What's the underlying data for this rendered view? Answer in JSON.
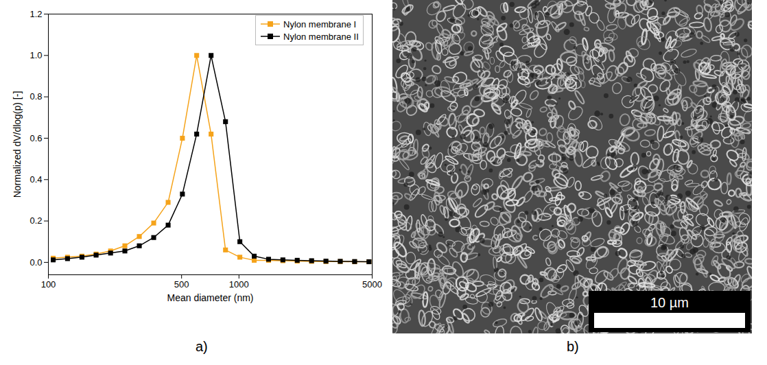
{
  "chart_data": {
    "type": "line",
    "x_label": "Mean diameter (nm)",
    "y_label": "Normalized dV/dlog(p) [-]",
    "x": [
      106,
      126,
      150,
      178,
      212,
      252,
      300,
      357,
      425,
      505,
      600,
      714,
      850,
      1011,
      1202,
      1430,
      1700,
      2022,
      2405,
      2860,
      3400,
      4045,
      4810
    ],
    "series": [
      {
        "name": "Nylon membrane I",
        "color": "#f5a31a",
        "marker": "square",
        "values": [
          0.02,
          0.025,
          0.03,
          0.04,
          0.055,
          0.08,
          0.125,
          0.19,
          0.29,
          0.6,
          1.0,
          0.62,
          0.06,
          0.025,
          0.01,
          0.01,
          0.008,
          0.006,
          0.005,
          0.004,
          0.004,
          0.003,
          0.003
        ]
      },
      {
        "name": "Nylon membrane II",
        "color": "#000000",
        "marker": "square",
        "values": [
          0.012,
          0.018,
          0.025,
          0.035,
          0.045,
          0.055,
          0.08,
          0.12,
          0.18,
          0.33,
          0.62,
          1.0,
          0.68,
          0.1,
          0.03,
          0.015,
          0.012,
          0.01,
          0.008,
          0.006,
          0.005,
          0.004,
          0.003
        ]
      }
    ],
    "log": "x",
    "xlim": [
      100,
      5000
    ],
    "xticks": [
      100,
      500,
      1000,
      5000
    ],
    "ylim": [
      -0.06,
      1.2
    ],
    "yticks": [
      {
        "value": 0,
        "label": "0.0"
      },
      0.2,
      0.4,
      0.6,
      0.8,
      {
        "value": 1,
        "label": "1.0"
      },
      1.2
    ],
    "grid": false,
    "legend": "top-right"
  },
  "panel_labels": [
    "a)",
    "b)"
  ],
  "image": {
    "scale_bar_label": "10 µm"
  }
}
